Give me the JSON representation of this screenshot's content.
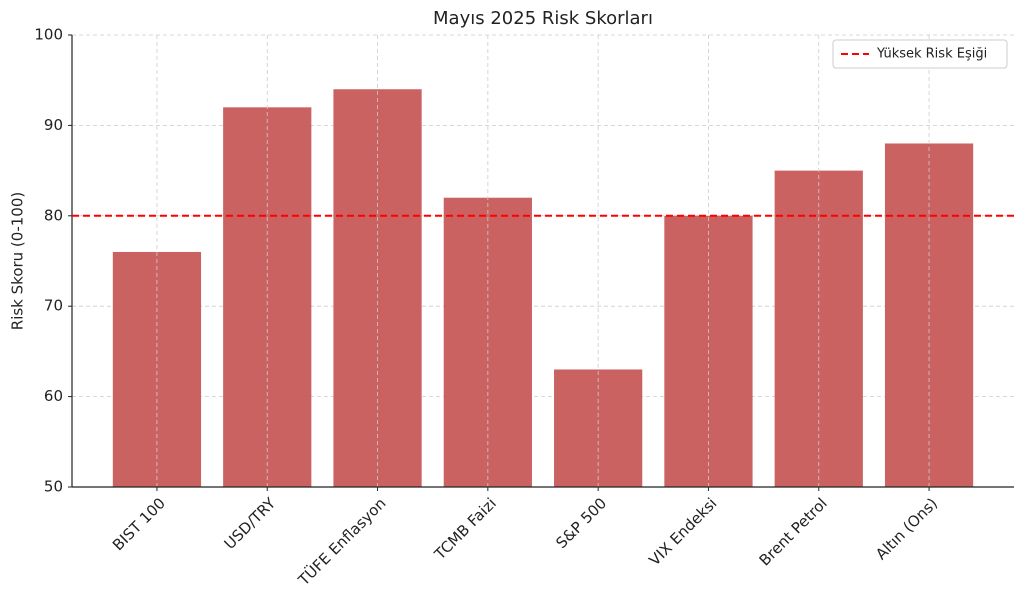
{
  "chart_data": {
    "type": "bar",
    "title": "Mayıs 2025 Risk Skorları",
    "y_label": "Risk Skoru (0-100)",
    "categories": [
      "BIST 100",
      "USD/TRY",
      "TÜFE Enflasyon",
      "TCMB Faizi",
      "S&P 500",
      "VIX Endeksi",
      "Brent Petrol",
      "Altın (Ons)"
    ],
    "values": [
      76,
      92,
      94,
      82,
      63,
      80,
      85,
      88
    ],
    "color": "#c85a5a",
    "ylim": [
      50,
      100
    ],
    "yticks": [
      50,
      60,
      70,
      80,
      90,
      100
    ],
    "grid": true,
    "threshold": {
      "value": 80,
      "label": "Yüksek Risk Eşiği",
      "color": "#ff0000"
    },
    "legend": "upper right"
  }
}
